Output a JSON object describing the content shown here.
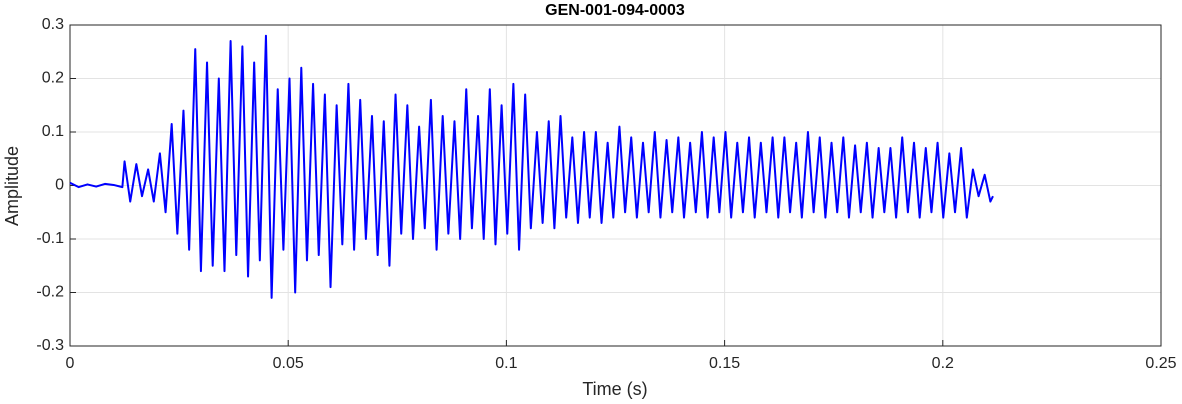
{
  "chart_data": {
    "type": "line",
    "title": "GEN-001-094-0003",
    "x_label": "Time (s)",
    "y_label": "Amplitude",
    "color": "#0000ff",
    "grid": true,
    "xlim": [
      0,
      0.25
    ],
    "xticks": [
      0,
      0.05,
      0.1,
      0.15,
      0.2,
      0.25
    ],
    "ylim": [
      -0.3,
      0.3
    ],
    "yticks": [
      -0.3,
      -0.2,
      -0.1,
      0,
      0.1,
      0.2,
      0.3
    ],
    "x": [
      0,
      0.002,
      0.004,
      0.006,
      0.008,
      0.01,
      0.012,
      0.0125,
      0.0138,
      0.0152,
      0.0165,
      0.0179,
      0.0192,
      0.0206,
      0.0219,
      0.0233,
      0.0246,
      0.026,
      0.0273,
      0.0287,
      0.03,
      0.0314,
      0.0327,
      0.0341,
      0.0354,
      0.0368,
      0.0381,
      0.0395,
      0.0408,
      0.0422,
      0.0435,
      0.0449,
      0.0462,
      0.0476,
      0.0489,
      0.0503,
      0.0516,
      0.053,
      0.0543,
      0.0557,
      0.057,
      0.0584,
      0.0597,
      0.0611,
      0.0624,
      0.0638,
      0.0651,
      0.0665,
      0.0678,
      0.0692,
      0.0705,
      0.0719,
      0.0732,
      0.0746,
      0.0759,
      0.0773,
      0.0786,
      0.08,
      0.0813,
      0.0827,
      0.084,
      0.0854,
      0.0867,
      0.0881,
      0.0894,
      0.0908,
      0.0921,
      0.0935,
      0.0948,
      0.0962,
      0.0975,
      0.0989,
      0.1002,
      0.1016,
      0.1029,
      0.1043,
      0.1056,
      0.107,
      0.1083,
      0.1097,
      0.111,
      0.1124,
      0.1137,
      0.1151,
      0.1164,
      0.1178,
      0.1191,
      0.1205,
      0.1218,
      0.1232,
      0.1245,
      0.1259,
      0.1272,
      0.1286,
      0.1299,
      0.1313,
      0.1326,
      0.134,
      0.1353,
      0.1367,
      0.138,
      0.1394,
      0.1407,
      0.1421,
      0.1434,
      0.1448,
      0.1461,
      0.1475,
      0.1488,
      0.1502,
      0.1515,
      0.1529,
      0.1542,
      0.1556,
      0.1569,
      0.1583,
      0.1596,
      0.161,
      0.1623,
      0.1637,
      0.165,
      0.1664,
      0.1677,
      0.1691,
      0.1704,
      0.1718,
      0.1731,
      0.1745,
      0.1758,
      0.1772,
      0.1785,
      0.1799,
      0.1812,
      0.1826,
      0.1839,
      0.1853,
      0.1866,
      0.188,
      0.1893,
      0.1907,
      0.192,
      0.1934,
      0.1947,
      0.1961,
      0.1974,
      0.1988,
      0.2001,
      0.2015,
      0.2028,
      0.2042,
      0.2055,
      0.2069,
      0.2082,
      0.2096,
      0.2109,
      0.2115
    ],
    "values": [
      0.005,
      -0.003,
      0.002,
      -0.002,
      0.003,
      0.001,
      -0.003,
      0.045,
      -0.03,
      0.04,
      -0.02,
      0.03,
      -0.03,
      0.06,
      -0.05,
      0.115,
      -0.09,
      0.14,
      -0.12,
      0.255,
      -0.16,
      0.23,
      -0.15,
      0.2,
      -0.16,
      0.27,
      -0.13,
      0.26,
      -0.17,
      0.23,
      -0.14,
      0.28,
      -0.21,
      0.18,
      -0.12,
      0.2,
      -0.2,
      0.22,
      -0.14,
      0.19,
      -0.13,
      0.17,
      -0.19,
      0.15,
      -0.11,
      0.19,
      -0.12,
      0.16,
      -0.1,
      0.13,
      -0.13,
      0.12,
      -0.15,
      0.17,
      -0.09,
      0.15,
      -0.1,
      0.11,
      -0.08,
      0.16,
      -0.12,
      0.13,
      -0.09,
      0.12,
      -0.1,
      0.18,
      -0.08,
      0.13,
      -0.1,
      0.18,
      -0.11,
      0.15,
      -0.09,
      0.19,
      -0.12,
      0.17,
      -0.08,
      0.1,
      -0.07,
      0.12,
      -0.08,
      0.13,
      -0.06,
      0.09,
      -0.07,
      0.1,
      -0.06,
      0.1,
      -0.07,
      0.08,
      -0.06,
      0.11,
      -0.05,
      0.09,
      -0.06,
      0.08,
      -0.05,
      0.1,
      -0.06,
      0.085,
      -0.05,
      0.09,
      -0.06,
      0.08,
      -0.05,
      0.1,
      -0.06,
      0.09,
      -0.05,
      0.1,
      -0.06,
      0.08,
      -0.05,
      0.09,
      -0.06,
      0.08,
      -0.05,
      0.09,
      -0.06,
      0.09,
      -0.05,
      0.08,
      -0.06,
      0.1,
      -0.05,
      0.09,
      -0.06,
      0.08,
      -0.05,
      0.09,
      -0.06,
      0.075,
      -0.05,
      0.08,
      -0.06,
      0.07,
      -0.05,
      0.07,
      -0.06,
      0.09,
      -0.05,
      0.08,
      -0.06,
      0.07,
      -0.05,
      0.08,
      -0.06,
      0.06,
      -0.05,
      0.07,
      -0.06,
      0.03,
      -0.02,
      0.02,
      -0.03,
      -0.02
    ]
  }
}
